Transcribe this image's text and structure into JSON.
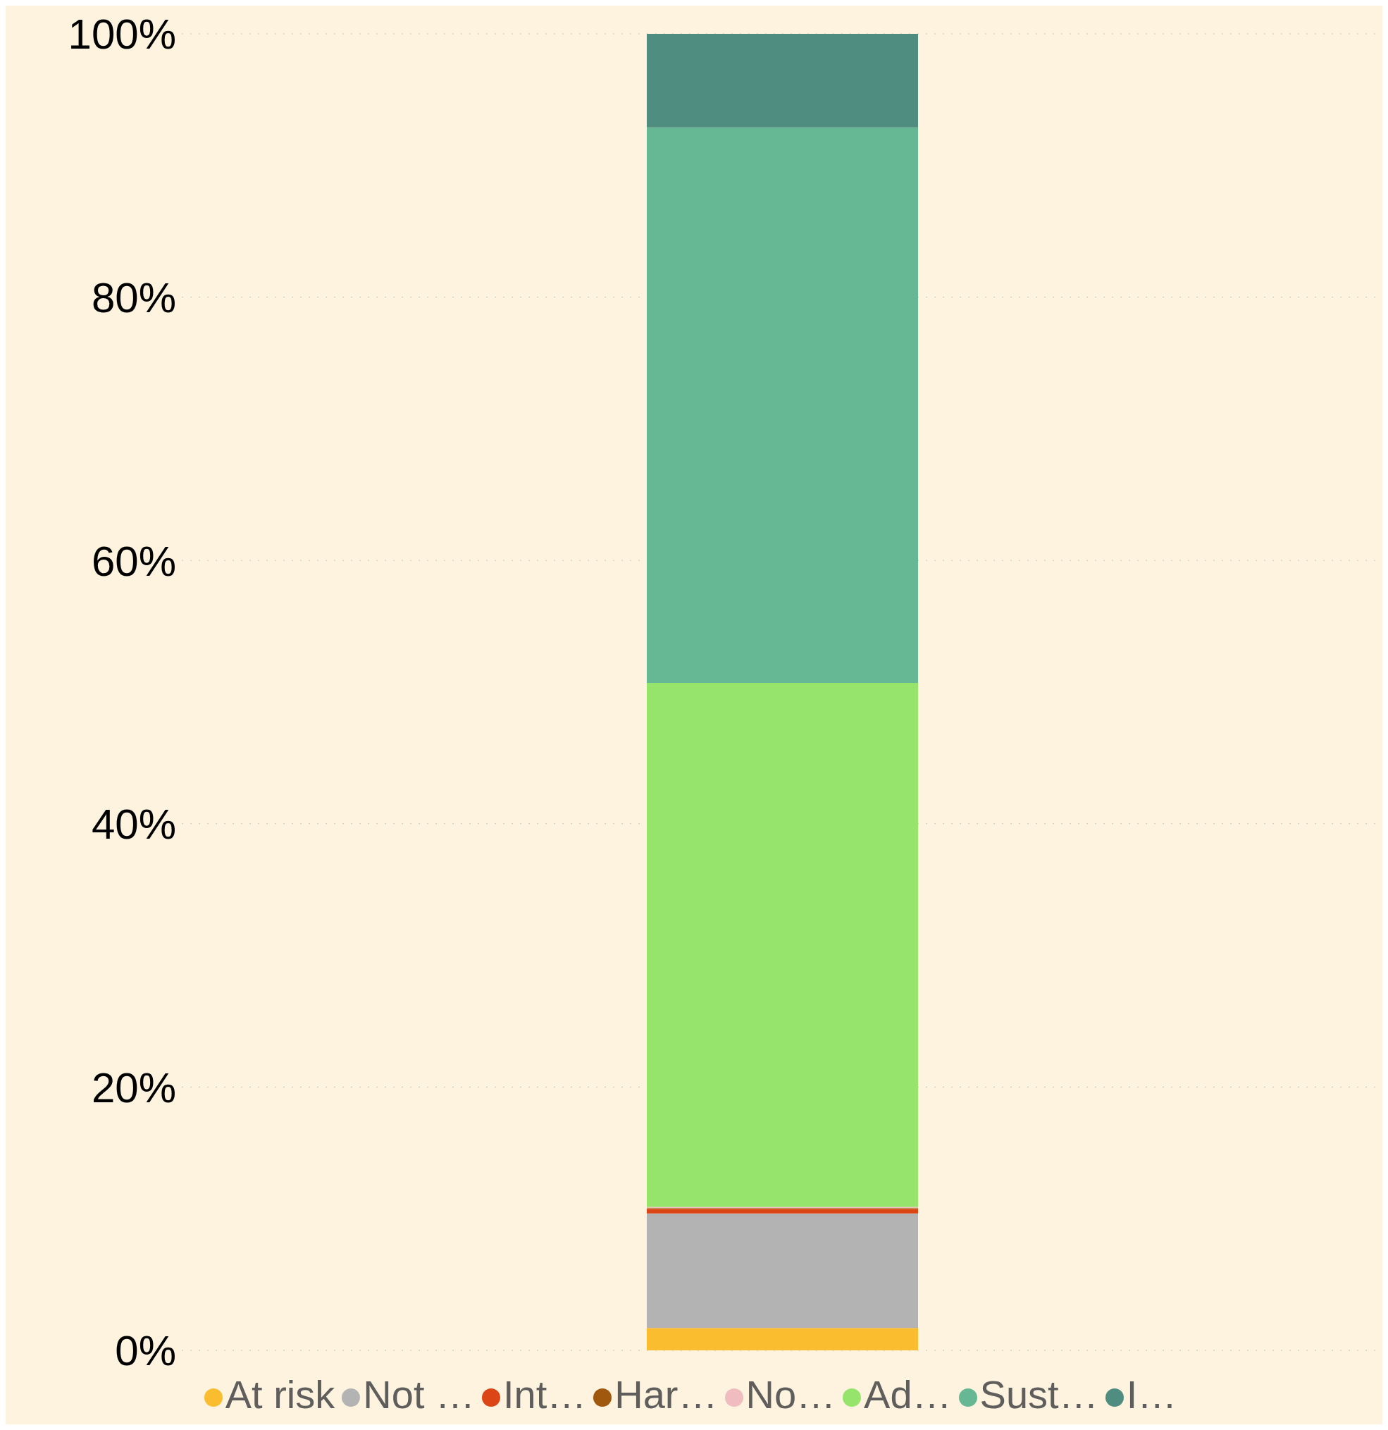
{
  "chart_data": {
    "type": "bar",
    "stacked": true,
    "categories": [
      null
    ],
    "series": [
      {
        "name": "At risk",
        "color": "#fbbd30",
        "values": [
          1.7
        ]
      },
      {
        "name": "Not …",
        "color": "#b3b3b3",
        "values": [
          8.7
        ]
      },
      {
        "name": "Int…",
        "color": "#dc4515",
        "values": [
          0.35
        ]
      },
      {
        "name": "Har…",
        "color": "#a0570e",
        "values": [
          0.05
        ]
      },
      {
        "name": "No…",
        "color": "#f0bcc0",
        "values": [
          0.1
        ]
      },
      {
        "name": "Ad…",
        "color": "#96e46c",
        "values": [
          39.8
        ]
      },
      {
        "name": "Sust…",
        "color": "#66b794",
        "values": [
          42.2
        ]
      },
      {
        "name": "I…",
        "color": "#4f8d80",
        "values": [
          7.1
        ]
      }
    ],
    "ylim": [
      0,
      100
    ],
    "yticks": [
      {
        "value": 0,
        "label": "0%"
      },
      {
        "value": 20,
        "label": "20%"
      },
      {
        "value": 40,
        "label": "40%"
      },
      {
        "value": 60,
        "label": "60%"
      },
      {
        "value": 80,
        "label": "80%"
      },
      {
        "value": 100,
        "label": "100%"
      }
    ],
    "grid": "y",
    "legend": "bottom"
  }
}
